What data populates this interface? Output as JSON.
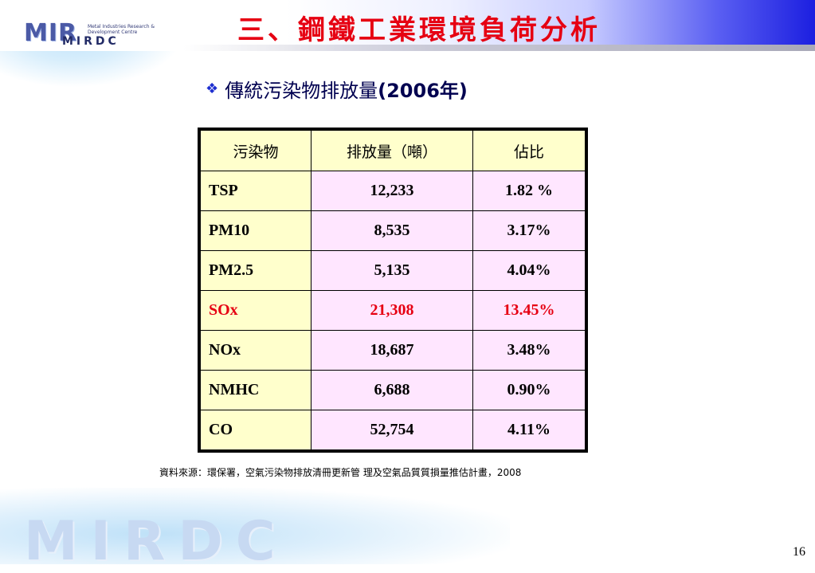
{
  "header": {
    "title": "三、鋼鐵工業環境負荷分析",
    "logo_text": "MIR",
    "logo_sub": "MIRDC",
    "logo_small": "Metal Industries Research & Development Centre"
  },
  "subtitle": {
    "bullet_icon": "diamond-bullet-icon",
    "text_prefix": "傳統污染物排放量",
    "text_year": "(2006年)"
  },
  "table": {
    "headers": [
      "污染物",
      "排放量（噸）",
      "佔比"
    ],
    "rows": [
      {
        "pollutant": "TSP",
        "amount": "12,233",
        "share": "1.82 %"
      },
      {
        "pollutant": "PM10",
        "amount": "8,535",
        "share": "3.17%"
      },
      {
        "pollutant": "PM2.5",
        "amount": "5,135",
        "share": "4.04%"
      },
      {
        "pollutant": "SOx",
        "amount": "21,308",
        "share": "13.45%"
      },
      {
        "pollutant": "NOx",
        "amount": "18,687",
        "share": "3.48%"
      },
      {
        "pollutant": "NMHC",
        "amount": "6,688",
        "share": "0.90%"
      },
      {
        "pollutant": "CO",
        "amount": "52,754",
        "share": "4.11%"
      }
    ],
    "highlight_color": "#e60012"
  },
  "source_note": "資料來源：環保署，空氣污染物排放清冊更新管 理及空氣品質質損量推估計畫，2008",
  "footer": {
    "logo_text": "MIRDC",
    "page_number": "16"
  },
  "colors": {
    "title": "#e60012",
    "header_gradient_end": "#1c1fe0",
    "header_cell_bg": "#ffffcc",
    "data_cell_bg": "#ffe6ff"
  }
}
